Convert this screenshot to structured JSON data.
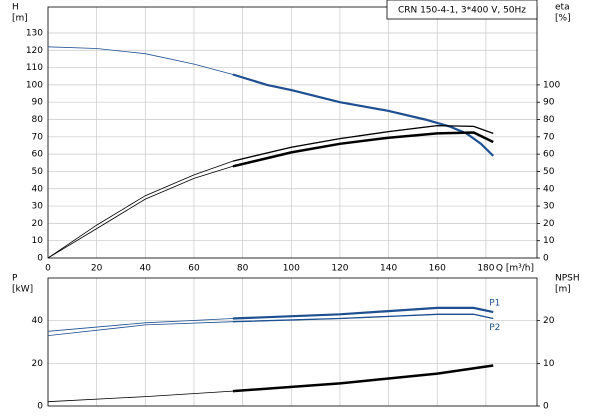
{
  "chart_data": [
    {
      "type": "line",
      "title": "CRN 150-4-1, 3*400 V, 50Hz",
      "x_label": "Q [m³/h]",
      "y_label": "H",
      "y_unit": "[m]",
      "y2_label": "eta",
      "y2_unit": "[%]",
      "xlim": [
        0,
        201
      ],
      "xticks": [
        0,
        20,
        40,
        60,
        80,
        100,
        120,
        140,
        160,
        180
      ],
      "xtick_labels": true,
      "ylim": [
        0,
        145
      ],
      "yticks": [
        0,
        10,
        20,
        30,
        40,
        50,
        60,
        70,
        80,
        90,
        100,
        110,
        120,
        130
      ],
      "y2lim": [
        0,
        145
      ],
      "y2ticks": [
        0,
        10,
        20,
        30,
        40,
        50,
        60,
        70,
        80,
        90,
        100
      ],
      "grid": true,
      "operating_range": [
        76,
        183
      ],
      "series": [
        {
          "color": "#1d4f91",
          "width": 2.2,
          "x": [
            0,
            20,
            40,
            60,
            76,
            90,
            100,
            120,
            140,
            155,
            165,
            172,
            178,
            183
          ],
          "values": [
            122,
            121,
            118,
            112,
            106,
            100,
            97,
            90,
            85,
            80,
            76,
            72,
            66,
            59
          ]
        },
        {
          "color": "#000000",
          "width": 1.3,
          "axis": "y2",
          "x": [
            0,
            20,
            40,
            60,
            76,
            100,
            120,
            140,
            160,
            175,
            183
          ],
          "values": [
            0,
            19,
            36,
            48,
            56,
            64,
            69,
            73,
            76.5,
            76,
            72
          ]
        },
        {
          "color": "#000000",
          "width": 2.5,
          "axis": "y2",
          "x": [
            0,
            20,
            40,
            60,
            76,
            100,
            120,
            140,
            160,
            175,
            183
          ],
          "values": [
            0,
            17,
            34,
            46,
            53,
            61,
            66,
            69.5,
            72,
            72.5,
            67
          ]
        }
      ]
    },
    {
      "type": "line",
      "y_label": "P",
      "y_unit": "[kW]",
      "y2_label": "NPSH",
      "y2_unit": "[m]",
      "xlim": [
        0,
        201
      ],
      "xticks": [
        0,
        20,
        40,
        60,
        80,
        100,
        120,
        140,
        160,
        180
      ],
      "xtick_labels": false,
      "ylim": [
        0,
        60
      ],
      "yticks": [
        0,
        20,
        40
      ],
      "y2lim": [
        0,
        30
      ],
      "y2ticks": [
        0,
        10,
        20
      ],
      "grid": true,
      "operating_range": [
        76,
        183
      ],
      "series": [
        {
          "name": "P1",
          "color": "#1d4f91",
          "width": 2.2,
          "x": [
            0,
            40,
            76,
            120,
            160,
            175,
            183
          ],
          "values": [
            35,
            39,
            41,
            43,
            46,
            46,
            44
          ]
        },
        {
          "name": "P2",
          "color": "#1d4f91",
          "width": 1.3,
          "x": [
            0,
            40,
            76,
            120,
            160,
            175,
            183
          ],
          "values": [
            33,
            38,
            39.5,
            41,
            43,
            43,
            41
          ]
        },
        {
          "color": "#000000",
          "width": 2.5,
          "axis": "y2",
          "x": [
            0,
            40,
            76,
            120,
            160,
            183
          ],
          "values": [
            1,
            2.2,
            3.5,
            5.3,
            7.6,
            9.5
          ]
        }
      ]
    }
  ]
}
